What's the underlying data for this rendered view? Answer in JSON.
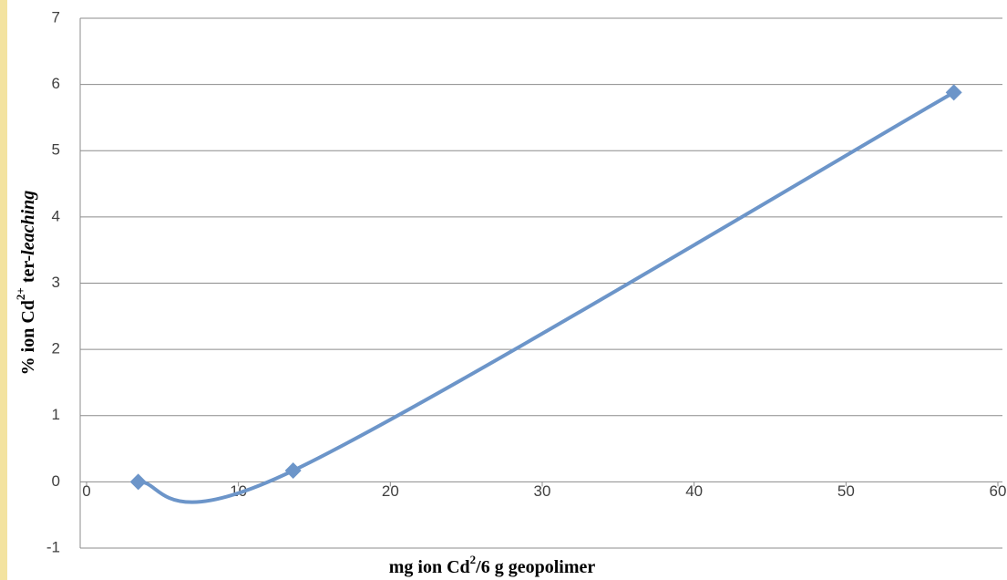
{
  "chart_data": {
    "type": "scatter",
    "smooth": true,
    "color": "#6c95c9",
    "x": [
      3.4,
      13.6,
      57.1
    ],
    "values": [
      0,
      0.17,
      5.88
    ],
    "xlim": [
      0,
      60
    ],
    "xticks": [
      0,
      10,
      20,
      30,
      40,
      50,
      60
    ],
    "ylim": [
      -1,
      7
    ],
    "yticks": [
      -1,
      0,
      1,
      2,
      3,
      4,
      5,
      6,
      7
    ],
    "grid": true,
    "x_label": [
      "mg ion Cd",
      "2",
      "/6 g geopolimer"
    ],
    "y_label": [
      "% ion Cd",
      "2+",
      " ter-",
      "leaching"
    ]
  }
}
